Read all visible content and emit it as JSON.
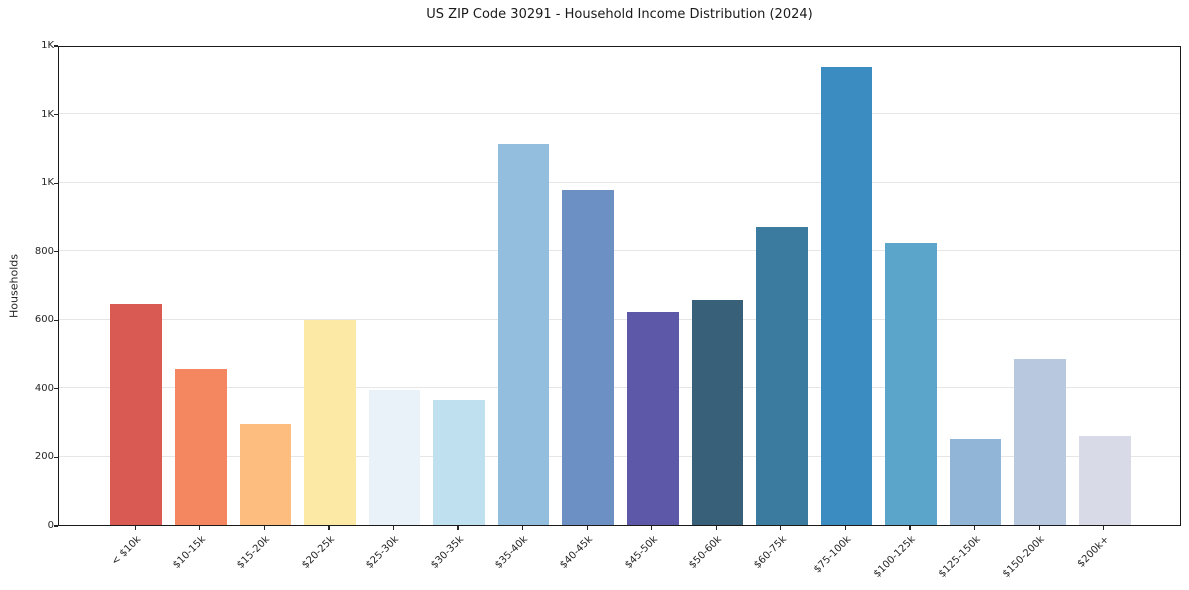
{
  "chart_data": {
    "type": "bar",
    "title": "US ZIP Code 30291 - Household Income Distribution (2024)",
    "xlabel": "",
    "ylabel": "Households",
    "categories": [
      "< $10k",
      "$10-15k",
      "$15-20k",
      "$20-25k",
      "$25-30k",
      "$30-35k",
      "$35-40k",
      "$40-45k",
      "$45-50k",
      "$50-60k",
      "$60-75k",
      "$75-100k",
      "$100-125k",
      "$125-150k",
      "$150-200k",
      "$200k+"
    ],
    "values": [
      645,
      455,
      295,
      598,
      395,
      365,
      1110,
      978,
      620,
      655,
      870,
      1335,
      823,
      250,
      485,
      260
    ],
    "bar_colors": [
      "#d95a52",
      "#f4875f",
      "#fcbd7e",
      "#fde9a6",
      "#e8f2f8",
      "#bfe0ee",
      "#93bedd",
      "#6c90c4",
      "#5d58a8",
      "#386078",
      "#3b7ba0",
      "#3a8cc1",
      "#5ca5ca",
      "#90b5d7",
      "#b8c8df",
      "#d8dae7"
    ],
    "ylim": [
      0,
      1400
    ],
    "yticks": [
      {
        "value": 0,
        "label": "0"
      },
      {
        "value": 200,
        "label": "200"
      },
      {
        "value": 400,
        "label": "400"
      },
      {
        "value": 600,
        "label": "600"
      },
      {
        "value": 800,
        "label": "800"
      },
      {
        "value": 1000,
        "label": "1K"
      },
      {
        "value": 1200,
        "label": "1K"
      },
      {
        "value": 1400,
        "label": "1K"
      }
    ],
    "grid": "horizontal",
    "gridline_color": "#e6e6e6",
    "spine_color": "#1a1a1a",
    "background_color": "#ffffff",
    "legend": null
  }
}
